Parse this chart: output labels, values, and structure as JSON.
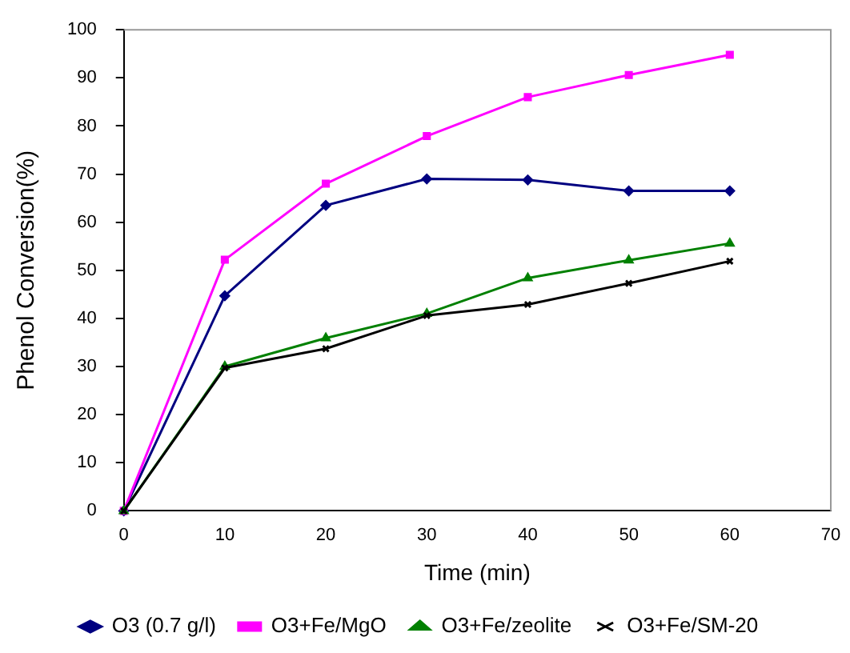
{
  "chart_data": {
    "type": "line",
    "xlabel": "Time (min)",
    "ylabel": "Phenol Conversion(%)",
    "x": [
      0,
      10,
      20,
      30,
      40,
      50,
      60
    ],
    "series": [
      {
        "name": "O3 (0.7 g/l)",
        "color": "#000080",
        "marker": "diamond",
        "values": [
          0,
          44.7,
          63.5,
          69,
          68.8,
          66.5,
          66.5
        ]
      },
      {
        "name": "O3+Fe/MgO",
        "color": "#ff00ff",
        "marker": "square",
        "values": [
          0,
          52.2,
          68,
          77.9,
          86,
          90.6,
          94.8
        ]
      },
      {
        "name": "O3+Fe/zeolite",
        "color": "#008000",
        "marker": "triangle",
        "values": [
          0,
          30,
          35.9,
          41,
          48.4,
          52.1,
          55.6
        ]
      },
      {
        "name": "O3+Fe/SM-20",
        "color": "#000000",
        "marker": "cross",
        "values": [
          0,
          29.7,
          33.7,
          40.6,
          42.9,
          47.3,
          51.9
        ]
      }
    ],
    "xlim": [
      0,
      70
    ],
    "xticks": [
      0,
      10,
      20,
      30,
      40,
      50,
      60,
      70
    ],
    "ylim": [
      0,
      100
    ],
    "yticks": [
      0,
      10,
      20,
      30,
      40,
      50,
      60,
      70,
      80,
      90,
      100
    ],
    "grid": false,
    "legend": "bottom",
    "line_style": "solid"
  }
}
